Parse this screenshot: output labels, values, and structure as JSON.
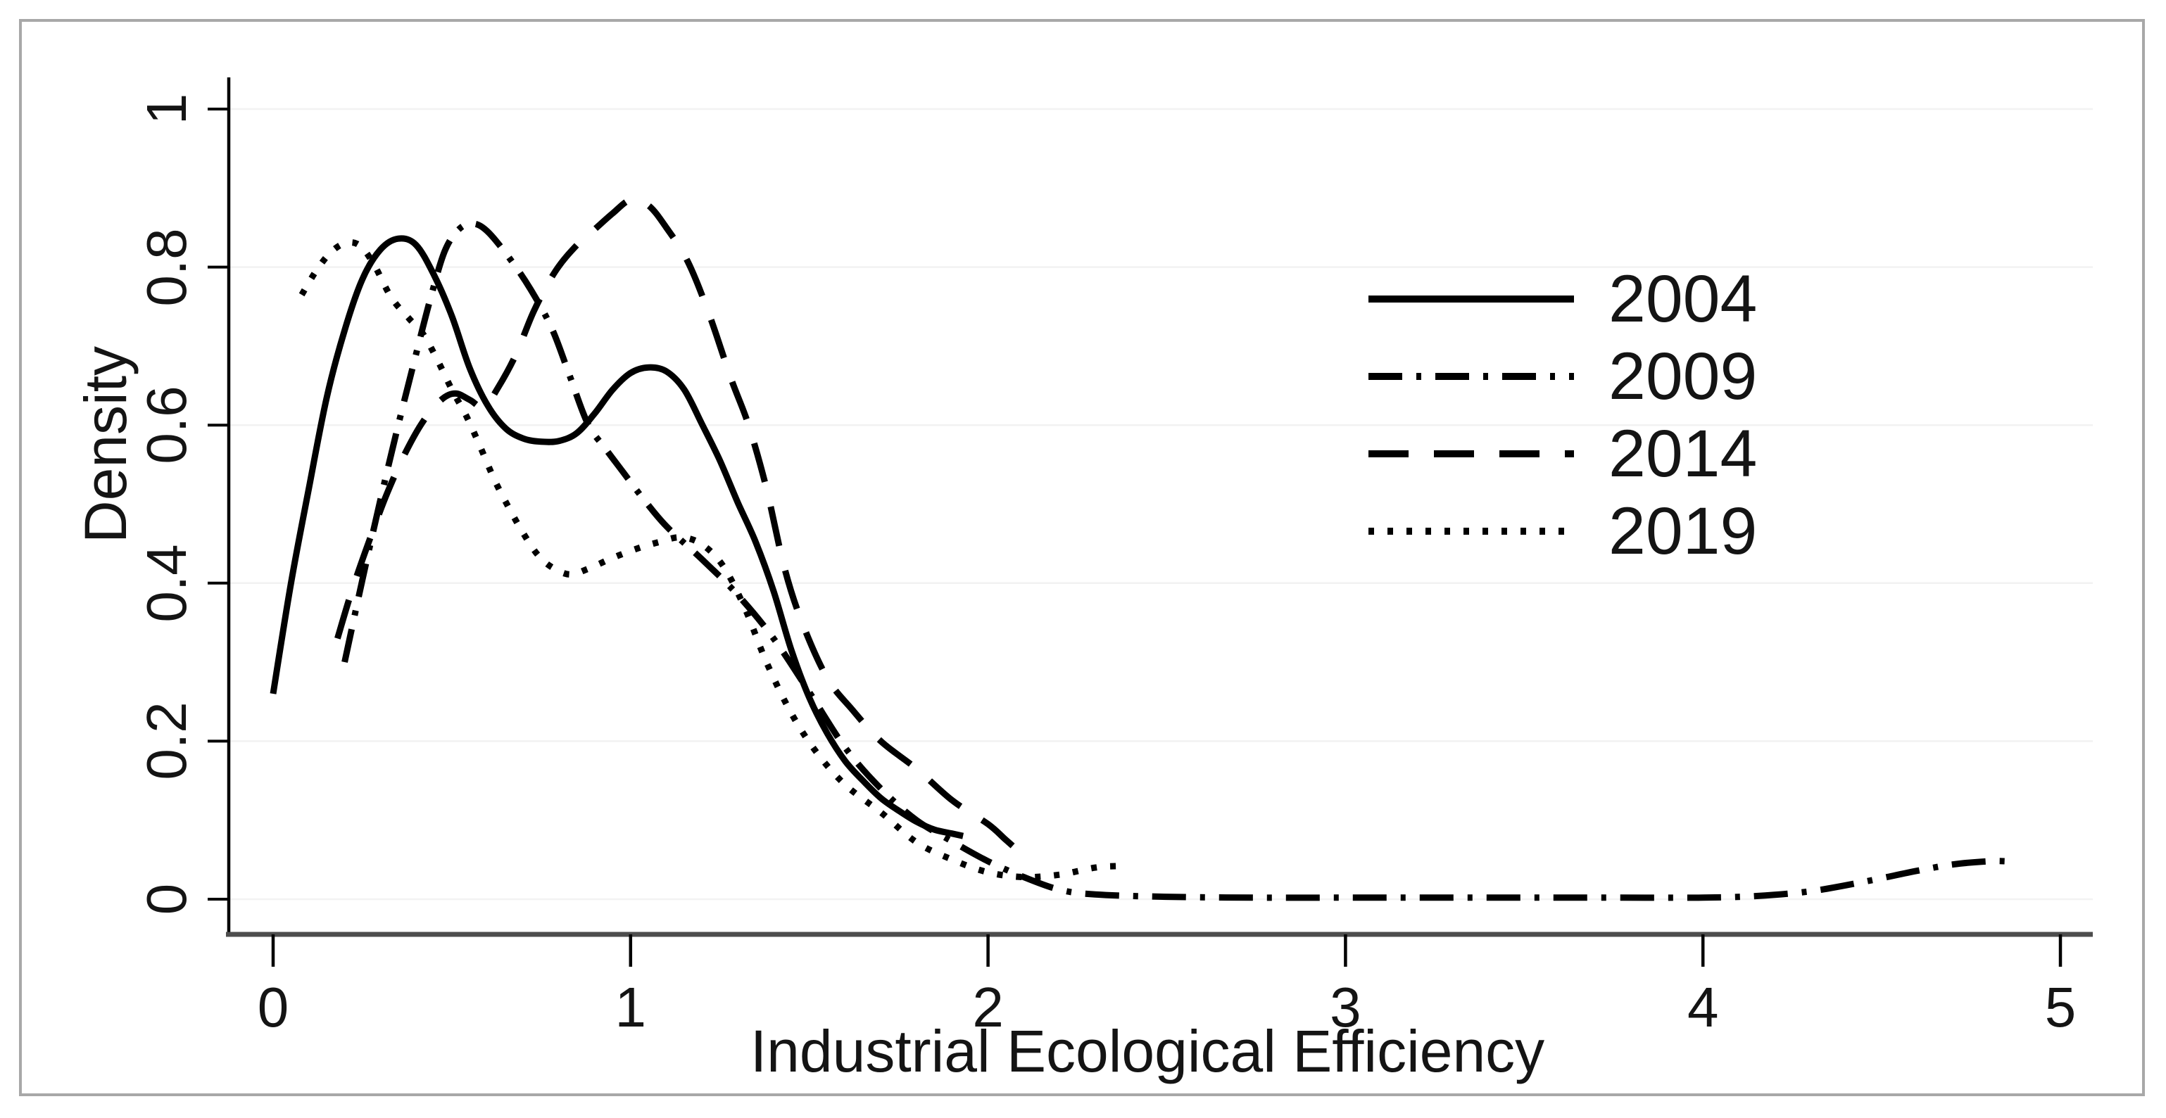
{
  "figure": {
    "background_color": "#ffffff",
    "border_color": "#a8a8a8",
    "line_color": "#000000",
    "x_axis_color": "#4d4d4d",
    "gridline_color": "#f2f2f2",
    "text_color": "#141414"
  },
  "legend": {
    "entries": [
      {
        "label": "2004",
        "line_style": "solid"
      },
      {
        "label": "2009",
        "line_style": "dash-dot"
      },
      {
        "label": "2014",
        "line_style": "long-dash"
      },
      {
        "label": "2019",
        "line_style": "dotted"
      }
    ]
  },
  "chart_data": {
    "type": "line",
    "title": "",
    "xlabel": "Industrial Ecological Efficiency",
    "ylabel": "Density",
    "xlim": [
      0,
      5
    ],
    "ylim": [
      0,
      1
    ],
    "xticks": [
      "0",
      "1",
      "2",
      "3",
      "4",
      "5"
    ],
    "yticks": [
      "0",
      "0.2",
      "0.4",
      "0.6",
      "0.8",
      "1"
    ],
    "grid": "horizontal",
    "legend_position": "upper-right-inside",
    "series": [
      {
        "name": "2004",
        "line_style": "solid",
        "color": "#000000",
        "points": [
          [
            0.0,
            0.26
          ],
          [
            0.05,
            0.4
          ],
          [
            0.1,
            0.52
          ],
          [
            0.15,
            0.635
          ],
          [
            0.2,
            0.72
          ],
          [
            0.25,
            0.785
          ],
          [
            0.3,
            0.822
          ],
          [
            0.35,
            0.836
          ],
          [
            0.4,
            0.828
          ],
          [
            0.45,
            0.79
          ],
          [
            0.5,
            0.738
          ],
          [
            0.55,
            0.672
          ],
          [
            0.6,
            0.625
          ],
          [
            0.65,
            0.596
          ],
          [
            0.7,
            0.583
          ],
          [
            0.75,
            0.579
          ],
          [
            0.8,
            0.58
          ],
          [
            0.85,
            0.59
          ],
          [
            0.9,
            0.615
          ],
          [
            0.95,
            0.645
          ],
          [
            1.0,
            0.666
          ],
          [
            1.05,
            0.673
          ],
          [
            1.1,
            0.668
          ],
          [
            1.15,
            0.645
          ],
          [
            1.2,
            0.601
          ],
          [
            1.25,
            0.555
          ],
          [
            1.3,
            0.502
          ],
          [
            1.35,
            0.452
          ],
          [
            1.4,
            0.39
          ],
          [
            1.45,
            0.315
          ],
          [
            1.5,
            0.255
          ],
          [
            1.55,
            0.21
          ],
          [
            1.6,
            0.175
          ],
          [
            1.65,
            0.15
          ],
          [
            1.7,
            0.128
          ],
          [
            1.75,
            0.112
          ],
          [
            1.8,
            0.098
          ],
          [
            1.85,
            0.088
          ],
          [
            1.9,
            0.083
          ],
          [
            1.93,
            0.08
          ]
        ]
      },
      {
        "name": "2009",
        "line_style": "dash-dot",
        "color": "#000000",
        "points": [
          [
            0.2,
            0.3
          ],
          [
            0.25,
            0.405
          ],
          [
            0.3,
            0.505
          ],
          [
            0.35,
            0.6
          ],
          [
            0.4,
            0.69
          ],
          [
            0.44,
            0.76
          ],
          [
            0.48,
            0.82
          ],
          [
            0.52,
            0.848
          ],
          [
            0.56,
            0.855
          ],
          [
            0.6,
            0.845
          ],
          [
            0.66,
            0.812
          ],
          [
            0.72,
            0.772
          ],
          [
            0.78,
            0.722
          ],
          [
            0.83,
            0.662
          ],
          [
            0.88,
            0.602
          ],
          [
            0.93,
            0.57
          ],
          [
            0.98,
            0.54
          ],
          [
            1.03,
            0.51
          ],
          [
            1.1,
            0.472
          ],
          [
            1.2,
            0.43
          ],
          [
            1.3,
            0.385
          ],
          [
            1.4,
            0.33
          ],
          [
            1.5,
            0.262
          ],
          [
            1.6,
            0.192
          ],
          [
            1.7,
            0.14
          ],
          [
            1.8,
            0.1
          ],
          [
            1.9,
            0.073
          ],
          [
            2.0,
            0.048
          ],
          [
            2.1,
            0.028
          ],
          [
            2.2,
            0.012
          ],
          [
            2.3,
            0.006
          ],
          [
            2.5,
            0.003
          ],
          [
            2.75,
            0.002
          ],
          [
            3.0,
            0.002
          ],
          [
            3.25,
            0.002
          ],
          [
            3.5,
            0.002
          ],
          [
            3.75,
            0.002
          ],
          [
            4.0,
            0.002
          ],
          [
            4.15,
            0.004
          ],
          [
            4.3,
            0.01
          ],
          [
            4.45,
            0.022
          ],
          [
            4.6,
            0.036
          ],
          [
            4.7,
            0.044
          ],
          [
            4.8,
            0.048
          ],
          [
            4.85,
            0.048
          ]
        ]
      },
      {
        "name": "2014",
        "line_style": "long-dash",
        "color": "#000000",
        "points": [
          [
            0.18,
            0.33
          ],
          [
            0.22,
            0.39
          ],
          [
            0.27,
            0.455
          ],
          [
            0.32,
            0.515
          ],
          [
            0.37,
            0.565
          ],
          [
            0.42,
            0.605
          ],
          [
            0.47,
            0.632
          ],
          [
            0.51,
            0.64
          ],
          [
            0.55,
            0.632
          ],
          [
            0.59,
            0.623
          ],
          [
            0.63,
            0.648
          ],
          [
            0.68,
            0.69
          ],
          [
            0.73,
            0.745
          ],
          [
            0.79,
            0.795
          ],
          [
            0.85,
            0.828
          ],
          [
            0.9,
            0.848
          ],
          [
            0.95,
            0.868
          ],
          [
            1.0,
            0.885
          ],
          [
            1.05,
            0.878
          ],
          [
            1.1,
            0.85
          ],
          [
            1.16,
            0.807
          ],
          [
            1.22,
            0.74
          ],
          [
            1.28,
            0.66
          ],
          [
            1.33,
            0.6
          ],
          [
            1.38,
            0.52
          ],
          [
            1.43,
            0.42
          ],
          [
            1.48,
            0.35
          ],
          [
            1.55,
            0.28
          ],
          [
            1.62,
            0.24
          ],
          [
            1.7,
            0.2
          ],
          [
            1.8,
            0.165
          ],
          [
            1.9,
            0.125
          ],
          [
            2.0,
            0.095
          ],
          [
            2.05,
            0.075
          ],
          [
            2.1,
            0.055
          ]
        ]
      },
      {
        "name": "2019",
        "line_style": "dotted",
        "color": "#000000",
        "points": [
          [
            0.08,
            0.765
          ],
          [
            0.12,
            0.795
          ],
          [
            0.16,
            0.818
          ],
          [
            0.2,
            0.83
          ],
          [
            0.24,
            0.828
          ],
          [
            0.28,
            0.805
          ],
          [
            0.33,
            0.762
          ],
          [
            0.38,
            0.735
          ],
          [
            0.42,
            0.715
          ],
          [
            0.46,
            0.682
          ],
          [
            0.5,
            0.645
          ],
          [
            0.54,
            0.612
          ],
          [
            0.58,
            0.572
          ],
          [
            0.62,
            0.53
          ],
          [
            0.66,
            0.495
          ],
          [
            0.7,
            0.463
          ],
          [
            0.74,
            0.436
          ],
          [
            0.78,
            0.42
          ],
          [
            0.83,
            0.411
          ],
          [
            0.88,
            0.418
          ],
          [
            0.95,
            0.432
          ],
          [
            1.02,
            0.444
          ],
          [
            1.08,
            0.452
          ],
          [
            1.14,
            0.458
          ],
          [
            1.2,
            0.449
          ],
          [
            1.26,
            0.421
          ],
          [
            1.32,
            0.368
          ],
          [
            1.38,
            0.3
          ],
          [
            1.45,
            0.235
          ],
          [
            1.52,
            0.186
          ],
          [
            1.6,
            0.145
          ],
          [
            1.7,
            0.11
          ],
          [
            1.8,
            0.072
          ],
          [
            1.9,
            0.05
          ],
          [
            2.0,
            0.034
          ],
          [
            2.1,
            0.028
          ],
          [
            2.2,
            0.031
          ],
          [
            2.3,
            0.04
          ],
          [
            2.37,
            0.042
          ]
        ]
      }
    ]
  }
}
